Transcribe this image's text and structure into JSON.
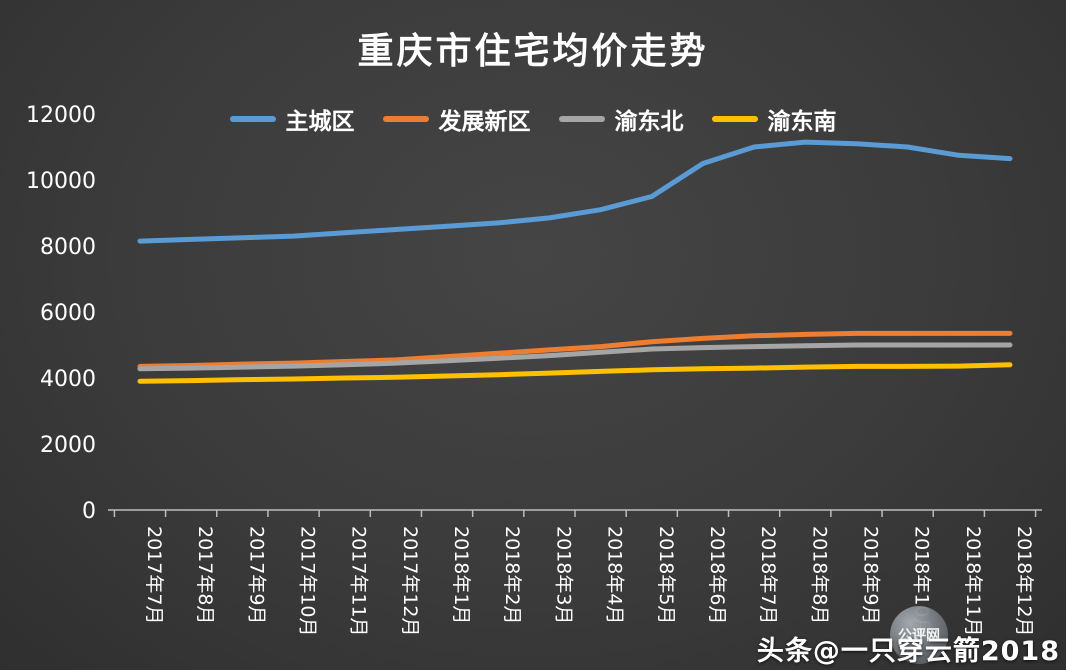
{
  "chart_data": {
    "type": "line",
    "title": "重庆市住宅均价走势",
    "xlabel": "",
    "ylabel": "",
    "ylim": [
      0,
      12000
    ],
    "ytick_step": 2000,
    "grid": false,
    "legend_position": "top",
    "categories": [
      "2017年7月",
      "2017年8月",
      "2017年9月",
      "2017年10月",
      "2017年11月",
      "2017年12月",
      "2018年1月",
      "2018年2月",
      "2018年3月",
      "2018年4月",
      "2018年5月",
      "2018年6月",
      "2018年7月",
      "2018年8月",
      "2018年9月",
      "2018年10月",
      "2018年11月",
      "2018年12月"
    ],
    "series": [
      {
        "name": "主城区",
        "color": "#5B9BD5",
        "values": [
          8150,
          8200,
          8250,
          8300,
          8400,
          8500,
          8600,
          8700,
          8850,
          9100,
          9500,
          10500,
          11000,
          11150,
          11100,
          11000,
          10750,
          10650
        ]
      },
      {
        "name": "发展新区",
        "color": "#ED7D31",
        "values": [
          4350,
          4380,
          4420,
          4450,
          4500,
          4550,
          4650,
          4750,
          4850,
          4950,
          5100,
          5200,
          5280,
          5320,
          5350,
          5350,
          5350,
          5350
        ]
      },
      {
        "name": "渝东北",
        "color": "#A5A5A5",
        "values": [
          4280,
          4300,
          4330,
          4360,
          4400,
          4450,
          4520,
          4600,
          4680,
          4780,
          4880,
          4920,
          4950,
          4980,
          5000,
          5000,
          5000,
          5000
        ]
      },
      {
        "name": "渝东南",
        "color": "#FFC000",
        "values": [
          3900,
          3920,
          3950,
          3970,
          4000,
          4020,
          4060,
          4100,
          4150,
          4200,
          4250,
          4280,
          4300,
          4330,
          4350,
          4350,
          4360,
          4400
        ]
      }
    ]
  },
  "watermark": {
    "platform_text": "头条@一只穿云箭2018",
    "logo_text": "公评网"
  },
  "colors": {
    "background": "#3b3b3b",
    "text": "#ffffff",
    "axis": "#bdbdbd"
  }
}
